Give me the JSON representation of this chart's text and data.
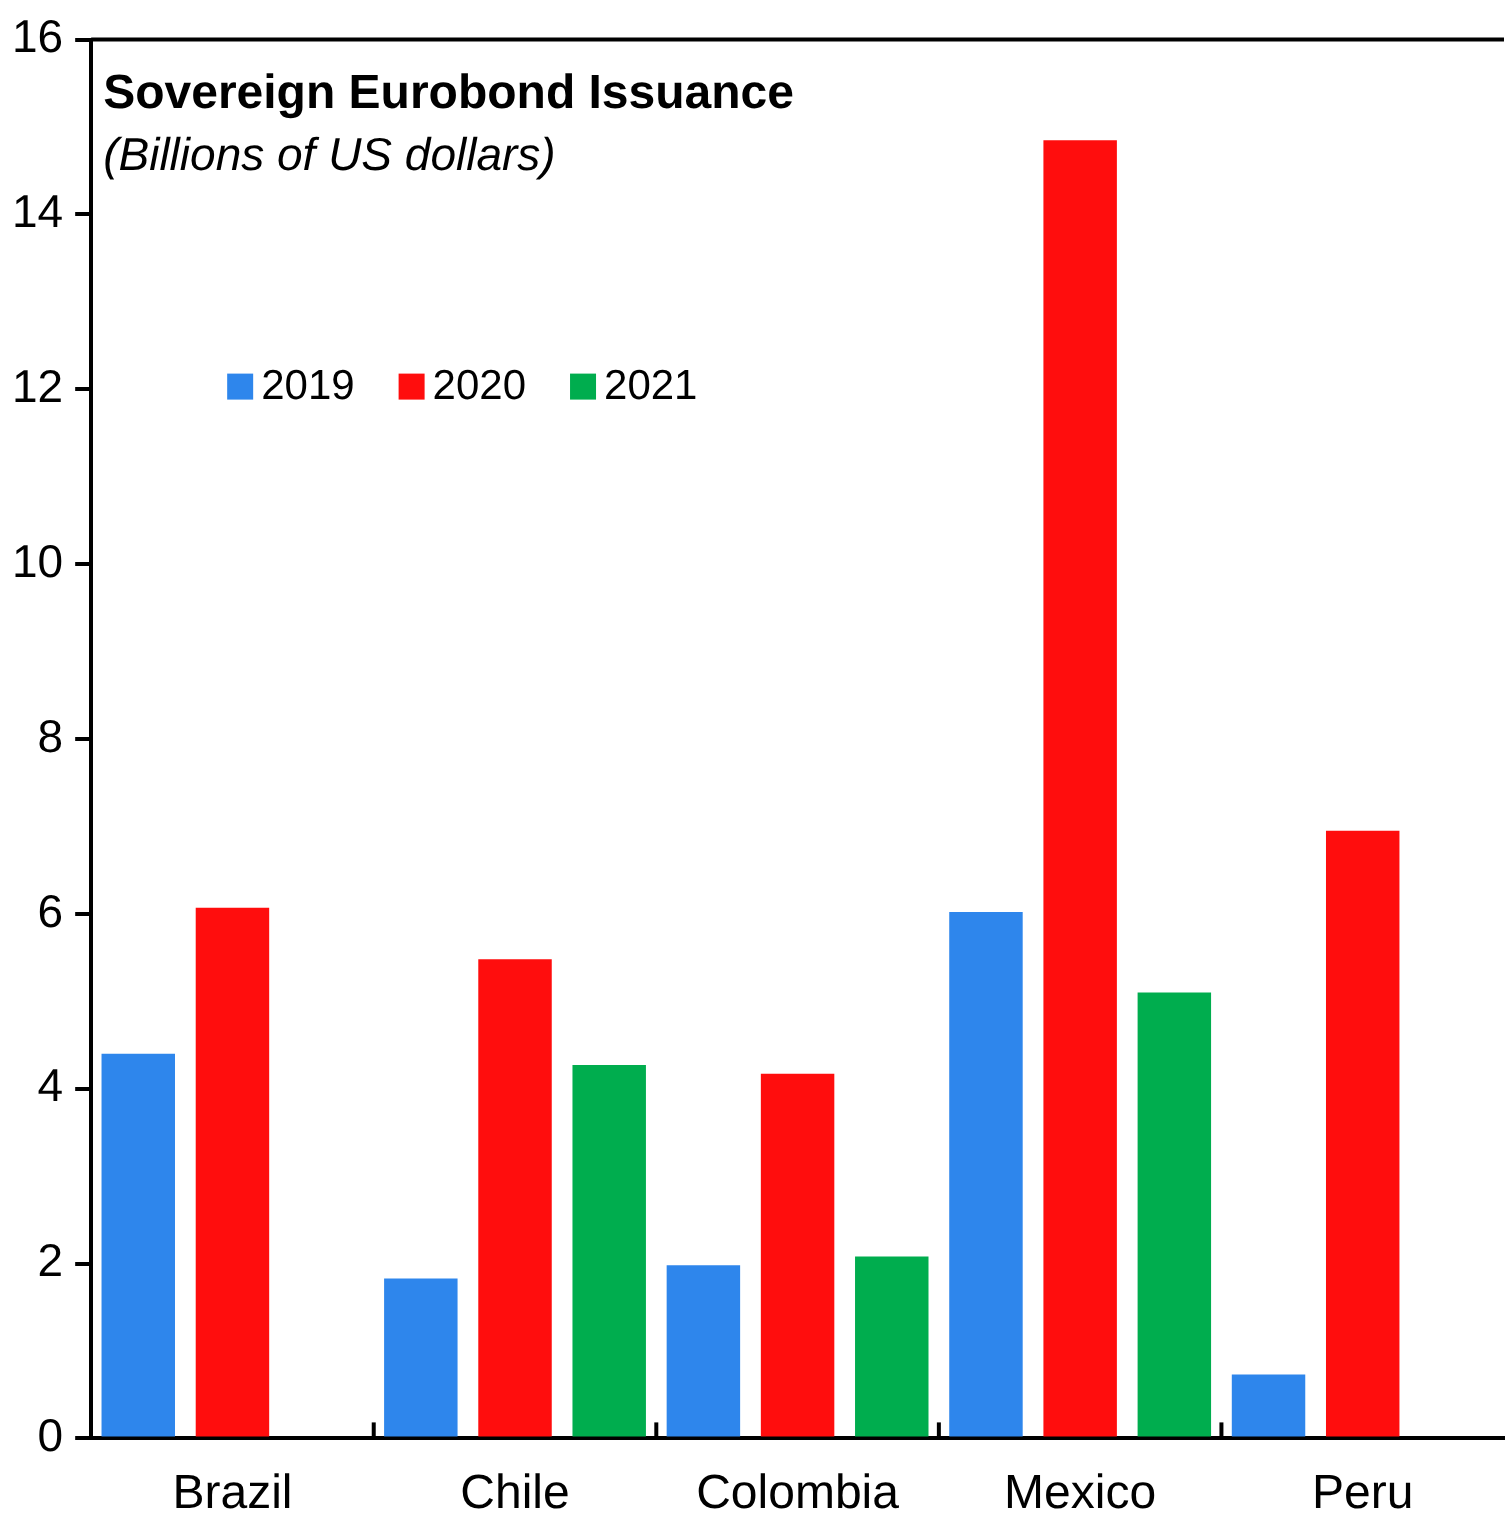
{
  "chart_data": {
    "type": "bar",
    "title": "Sovereign Eurobond Issuance",
    "subtitle": "(Billions of US dollars)",
    "categories": [
      "Brazil",
      "Chile",
      "Colombia",
      "Mexico",
      "Peru"
    ],
    "series": [
      {
        "name": "2019",
        "color": "#2e86ec",
        "values": [
          4.4,
          1.83,
          1.98,
          6.02,
          0.73
        ]
      },
      {
        "name": "2020",
        "color": "#ff0d0d",
        "values": [
          6.07,
          5.48,
          4.17,
          14.85,
          6.95
        ]
      },
      {
        "name": "2021",
        "color": "#00ad4e",
        "values": [
          null,
          4.27,
          2.08,
          5.1,
          null
        ]
      }
    ],
    "ylim": [
      0,
      16
    ],
    "yticks": [
      0,
      2,
      4,
      6,
      8,
      10,
      12,
      14,
      16
    ],
    "grid": false,
    "legend": "top left"
  }
}
